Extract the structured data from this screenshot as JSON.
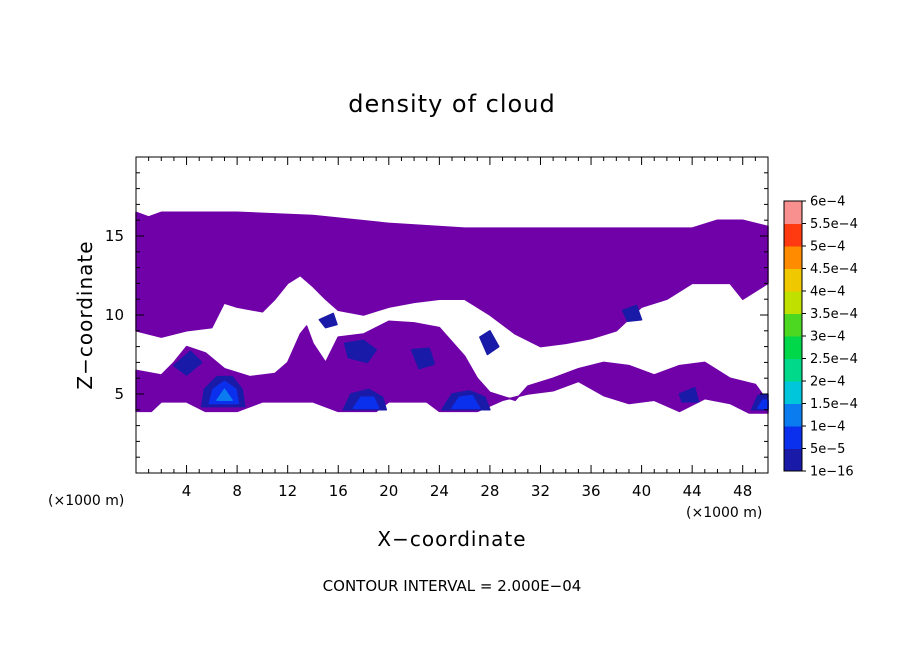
{
  "chart_data": {
    "type": "heatmap",
    "title": "density of cloud",
    "xlabel": "X−coordinate",
    "ylabel": "Z−coordinate",
    "x_unit_label": "(×1000 m)",
    "y_unit_label": "(×1000 m)",
    "xlim": [
      0,
      50
    ],
    "ylim": [
      0,
      20
    ],
    "x_ticks": [
      4,
      8,
      12,
      16,
      20,
      24,
      28,
      32,
      36,
      40,
      44,
      48
    ],
    "y_ticks": [
      5,
      10,
      15
    ],
    "grid": false,
    "contour_interval_label": "CONTOUR INTERVAL = 2.000E−04",
    "colorbar": {
      "placement": "right",
      "levels": [
        {
          "label": "1e−16",
          "color": "#7000a8"
        },
        {
          "label": "5e−5",
          "color": "#1a1aa8"
        },
        {
          "label": "1e−4",
          "color": "#0a30ee"
        },
        {
          "label": "1.5e−4",
          "color": "#0a7cf0"
        },
        {
          "label": "2e−4",
          "color": "#00c6dc"
        },
        {
          "label": "2.5e−4",
          "color": "#00d88a"
        },
        {
          "label": "3e−4",
          "color": "#00d84a"
        },
        {
          "label": "3.5e−4",
          "color": "#4cd820"
        },
        {
          "label": "4e−4",
          "color": "#c0e000"
        },
        {
          "label": "4.5e−4",
          "color": "#f0c800"
        },
        {
          "label": "5e−4",
          "color": "#ff8c00"
        },
        {
          "label": "5.5e−4",
          "color": "#ff3a10"
        },
        {
          "label": "6e−4",
          "color": "#f89090"
        }
      ]
    },
    "regions": [
      {
        "level": 0,
        "points": [
          [
            0,
            16.5
          ],
          [
            1,
            16.2
          ],
          [
            2,
            16.5
          ],
          [
            8,
            16.5
          ],
          [
            14,
            16.3
          ],
          [
            20,
            15.8
          ],
          [
            26,
            15.5
          ],
          [
            36,
            15.5
          ],
          [
            44,
            15.5
          ],
          [
            46,
            16
          ],
          [
            48,
            16
          ],
          [
            50,
            15.6
          ],
          [
            50,
            12
          ],
          [
            48,
            11
          ],
          [
            47,
            12
          ],
          [
            44,
            12
          ],
          [
            42,
            11
          ],
          [
            40,
            10.5
          ],
          [
            38,
            9
          ],
          [
            36,
            8.5
          ],
          [
            34,
            8.2
          ],
          [
            32,
            8
          ],
          [
            30,
            8.8
          ],
          [
            28,
            10
          ],
          [
            26,
            11
          ],
          [
            24,
            11
          ],
          [
            22,
            10.8
          ],
          [
            20,
            10.5
          ],
          [
            18,
            10
          ],
          [
            16,
            10.3
          ],
          [
            15,
            11
          ],
          [
            14,
            11.8
          ],
          [
            13,
            12.5
          ],
          [
            12,
            12
          ],
          [
            11,
            11
          ],
          [
            10,
            10.2
          ],
          [
            8,
            10.5
          ],
          [
            6,
            11
          ],
          [
            4,
            10.3
          ],
          [
            2,
            9.8
          ],
          [
            0,
            10
          ]
        ]
      },
      {
        "level": 0,
        "points": [
          [
            0,
            10
          ],
          [
            2,
            9.8
          ],
          [
            4,
            10.3
          ],
          [
            6,
            11
          ],
          [
            7,
            10.8
          ],
          [
            6,
            9.2
          ],
          [
            4,
            9
          ],
          [
            2,
            8.6
          ],
          [
            0,
            9
          ]
        ]
      },
      {
        "level": 0,
        "points": [
          [
            0,
            6.5
          ],
          [
            2,
            6.2
          ],
          [
            3,
            7
          ],
          [
            4,
            8
          ],
          [
            5.5,
            7.6
          ],
          [
            7,
            6.6
          ],
          [
            9,
            6.1
          ],
          [
            11,
            6.3
          ],
          [
            12,
            7
          ],
          [
            13,
            8.8
          ],
          [
            13.5,
            9.3
          ],
          [
            14,
            8.2
          ],
          [
            15,
            7
          ],
          [
            16,
            8.6
          ],
          [
            18,
            8.8
          ],
          [
            20,
            9.6
          ],
          [
            22,
            9.5
          ],
          [
            24,
            9.2
          ],
          [
            26,
            7.4
          ],
          [
            27,
            6
          ],
          [
            28,
            5.1
          ],
          [
            30,
            4.6
          ],
          [
            31,
            5.5
          ],
          [
            33,
            6
          ],
          [
            35,
            6.6
          ],
          [
            37,
            7
          ],
          [
            39,
            6.8
          ],
          [
            41,
            6.2
          ],
          [
            43,
            6.8
          ],
          [
            45,
            7
          ],
          [
            47,
            6
          ],
          [
            49,
            5.6
          ],
          [
            50,
            4.5
          ],
          [
            50,
            3.8
          ],
          [
            48.5,
            3.8
          ],
          [
            47,
            4.4
          ],
          [
            45,
            4.7
          ],
          [
            43,
            3.9
          ],
          [
            41,
            4.6
          ],
          [
            39,
            4.4
          ],
          [
            37,
            4.9
          ],
          [
            35,
            5.8
          ],
          [
            33,
            5.2
          ],
          [
            31,
            5
          ],
          [
            29,
            4.6
          ],
          [
            27,
            3.9
          ],
          [
            24,
            3.9
          ],
          [
            23,
            4.5
          ],
          [
            20,
            4.5
          ],
          [
            19,
            3.9
          ],
          [
            16,
            3.9
          ],
          [
            14,
            4.5
          ],
          [
            10,
            4.5
          ],
          [
            8,
            3.9
          ],
          [
            5.5,
            3.9
          ],
          [
            4,
            4.5
          ],
          [
            2,
            4.5
          ],
          [
            1.2,
            3.9
          ],
          [
            0,
            3.9
          ]
        ]
      },
      {
        "level": 1,
        "points": [
          [
            3,
            6.8
          ],
          [
            4.3,
            7.7
          ],
          [
            5.2,
            7
          ],
          [
            4,
            6.2
          ]
        ]
      },
      {
        "level": 1,
        "points": [
          [
            16.5,
            8.2
          ],
          [
            18,
            8.4
          ],
          [
            19,
            7.8
          ],
          [
            18.3,
            7
          ],
          [
            16.8,
            7.3
          ]
        ]
      },
      {
        "level": 1,
        "points": [
          [
            21.8,
            7.8
          ],
          [
            23.2,
            7.9
          ],
          [
            23.6,
            6.9
          ],
          [
            22.4,
            6.6
          ]
        ]
      },
      {
        "level": 1,
        "points": [
          [
            27.2,
            8.6
          ],
          [
            28,
            9
          ],
          [
            28.7,
            8
          ],
          [
            27.8,
            7.5
          ]
        ]
      },
      {
        "level": 1,
        "points": [
          [
            14.5,
            9.7
          ],
          [
            15.6,
            10.1
          ],
          [
            15.9,
            9.4
          ],
          [
            15,
            9.2
          ]
        ]
      },
      {
        "level": 1,
        "points": [
          [
            38.5,
            10.3
          ],
          [
            39.6,
            10.6
          ],
          [
            40,
            9.7
          ],
          [
            38.9,
            9.6
          ]
        ]
      },
      {
        "level": 1,
        "points": [
          [
            43,
            5
          ],
          [
            44.2,
            5.4
          ],
          [
            44.5,
            4.5
          ],
          [
            43.2,
            4.5
          ]
        ]
      },
      {
        "level": 1,
        "points": [
          [
            5.2,
            4.2
          ],
          [
            5.4,
            5.3
          ],
          [
            6.4,
            6.1
          ],
          [
            7.6,
            6.1
          ],
          [
            8.4,
            5.3
          ],
          [
            8.6,
            4.2
          ]
        ]
      },
      {
        "level": 1,
        "points": [
          [
            16.4,
            4
          ],
          [
            17,
            5
          ],
          [
            18.4,
            5.3
          ],
          [
            19.5,
            4.8
          ],
          [
            19.8,
            4
          ]
        ]
      },
      {
        "level": 1,
        "points": [
          [
            24.2,
            4
          ],
          [
            25,
            5
          ],
          [
            26.4,
            5.2
          ],
          [
            27.6,
            4.8
          ],
          [
            28,
            4
          ]
        ]
      },
      {
        "level": 1,
        "points": [
          [
            48.7,
            4
          ],
          [
            49.2,
            4.9
          ],
          [
            50,
            5
          ],
          [
            50,
            4
          ]
        ]
      },
      {
        "level": 2,
        "points": [
          [
            5.8,
            4.4
          ],
          [
            6.1,
            5.3
          ],
          [
            7,
            5.8
          ],
          [
            7.9,
            5.3
          ],
          [
            8.1,
            4.4
          ]
        ]
      },
      {
        "level": 2,
        "points": [
          [
            17.2,
            4.1
          ],
          [
            17.8,
            4.8
          ],
          [
            18.8,
            4.8
          ],
          [
            19.2,
            4.1
          ]
        ]
      },
      {
        "level": 2,
        "points": [
          [
            25,
            4.1
          ],
          [
            25.6,
            4.8
          ],
          [
            26.6,
            4.9
          ],
          [
            27.2,
            4.1
          ]
        ]
      },
      {
        "level": 2,
        "points": [
          [
            49.2,
            4.1
          ],
          [
            49.6,
            4.6
          ],
          [
            50,
            4.6
          ],
          [
            50,
            4.1
          ]
        ]
      },
      {
        "level": 3,
        "points": [
          [
            6.4,
            4.6
          ],
          [
            7,
            5.3
          ],
          [
            7.6,
            4.6
          ]
        ]
      }
    ]
  }
}
